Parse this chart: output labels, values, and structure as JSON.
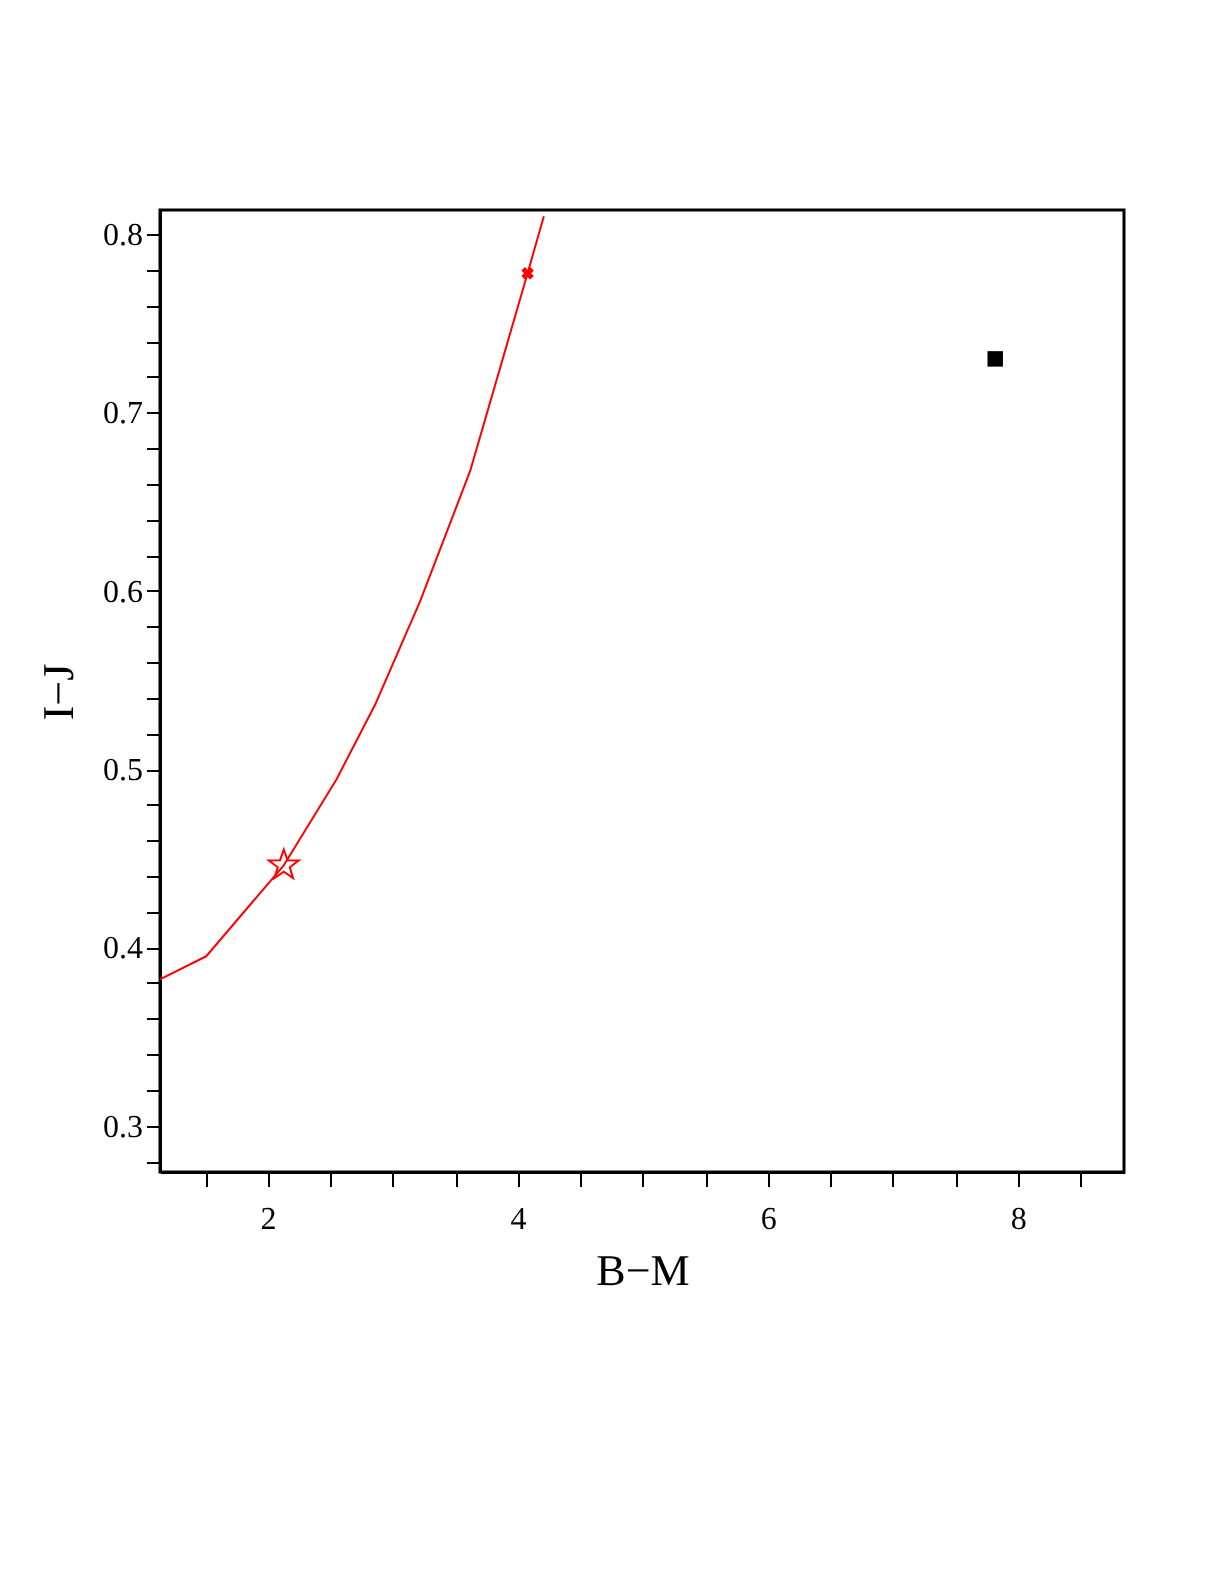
{
  "chart_data": {
    "type": "line",
    "xlabel": "B−M",
    "ylabel": "I−J",
    "xlim": [
      1.14,
      8.85
    ],
    "ylim": [
      0.274,
      0.8135
    ],
    "xticks": [
      {
        "value": 1.5,
        "label": null
      },
      2,
      {
        "value": 2.5,
        "label": null
      },
      {
        "value": 3,
        "label": null
      },
      {
        "value": 3.5,
        "label": null
      },
      4,
      {
        "value": 4.5,
        "label": null
      },
      {
        "value": 5,
        "label": null
      },
      {
        "value": 5.5,
        "label": null
      },
      6,
      {
        "value": 6.5,
        "label": null
      },
      {
        "value": 7,
        "label": null
      },
      {
        "value": 7.5,
        "label": null
      },
      8,
      {
        "value": 8.5,
        "label": null
      }
    ],
    "yticks": [
      {
        "value": 0.28,
        "label": null
      },
      0.3,
      {
        "value": 0.32,
        "label": null
      },
      {
        "value": 0.34,
        "label": null
      },
      {
        "value": 0.36,
        "label": null
      },
      {
        "value": 0.38,
        "label": null
      },
      0.4,
      {
        "value": 0.42,
        "label": null
      },
      {
        "value": 0.44,
        "label": null
      },
      {
        "value": 0.46,
        "label": null
      },
      {
        "value": 0.48,
        "label": null
      },
      0.5,
      {
        "value": 0.52,
        "label": null
      },
      {
        "value": 0.54,
        "label": null
      },
      {
        "value": 0.56,
        "label": null
      },
      {
        "value": 0.58,
        "label": null
      },
      0.6,
      {
        "value": 0.62,
        "label": null
      },
      {
        "value": 0.64,
        "label": null
      },
      {
        "value": 0.66,
        "label": null
      },
      {
        "value": 0.68,
        "label": null
      },
      0.7,
      {
        "value": 0.72,
        "label": null
      },
      {
        "value": 0.74,
        "label": null
      },
      {
        "value": 0.76,
        "label": null
      },
      {
        "value": 0.78,
        "label": null
      },
      0.8
    ],
    "grid": false,
    "series": [
      {
        "color": "#ff0000",
        "marker": "none",
        "line_style": "solid",
        "x": [
          1.14,
          1.51,
          2.13,
          2.55,
          2.86,
          3.22,
          3.62,
          4.08,
          4.21
        ],
        "values": [
          0.382,
          0.395,
          0.446,
          0.494,
          0.536,
          0.594,
          0.667,
          0.778,
          0.81
        ]
      },
      {
        "type": "scatter",
        "color": "#ff0000",
        "marker": "star",
        "x": [
          2.13
        ],
        "values": [
          0.446
        ]
      },
      {
        "type": "scatter",
        "color": "#ff0000",
        "marker": "cross",
        "x": [
          4.08
        ],
        "values": [
          0.778
        ]
      },
      {
        "type": "scatter",
        "color": "#000000",
        "marker": "square",
        "x": [
          7.82
        ],
        "values": [
          0.73
        ]
      }
    ]
  }
}
